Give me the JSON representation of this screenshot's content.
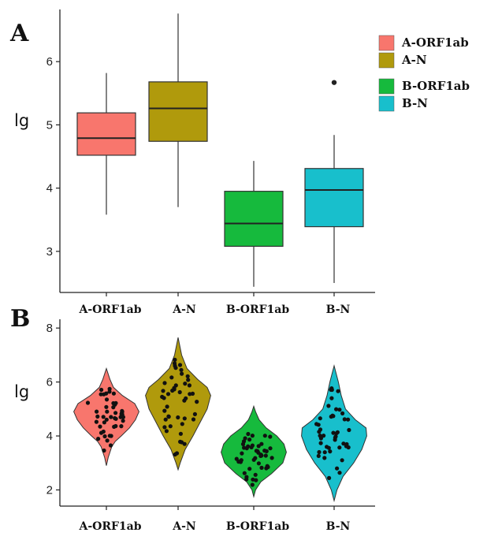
{
  "chart_data": [
    {
      "panel": "A",
      "type": "box",
      "ylabel": "lg",
      "ylim": [
        2.35,
        6.75
      ],
      "yticks": [
        3,
        4,
        5,
        6
      ],
      "categories": [
        "A-ORF1ab",
        "A-N",
        "B-ORF1ab",
        "B-N"
      ],
      "boxes": [
        {
          "name": "A-ORF1ab",
          "whisker_low": 3.58,
          "q1": 4.52,
          "median": 4.79,
          "q3": 5.19,
          "whisker_high": 5.82,
          "outliers": [],
          "color": "#F8766D"
        },
        {
          "name": "A-N",
          "whisker_low": 3.7,
          "q1": 4.74,
          "median": 5.26,
          "q3": 5.68,
          "whisker_high": 6.76,
          "outliers": [],
          "color": "#B09A0C"
        },
        {
          "name": "B-ORF1ab",
          "whisker_low": 2.44,
          "q1": 3.08,
          "median": 3.44,
          "q3": 3.95,
          "whisker_high": 4.43,
          "outliers": [],
          "color": "#16BA3D"
        },
        {
          "name": "B-N",
          "whisker_low": 2.5,
          "q1": 3.39,
          "median": 3.97,
          "q3": 4.31,
          "whisker_high": 4.84,
          "outliers": [
            5.67
          ],
          "color": "#18BFCC"
        }
      ]
    },
    {
      "panel": "B",
      "type": "violin",
      "ylabel": "lg",
      "ylim": [
        1.4,
        8.15
      ],
      "yticks": [
        2,
        4,
        6,
        8
      ],
      "categories": [
        "A-ORF1ab",
        "A-N",
        "B-ORF1ab",
        "B-N"
      ],
      "violins": [
        {
          "name": "A-ORF1ab",
          "min": 2.9,
          "max": 6.5,
          "color": "#F8766D",
          "profile": [
            [
              2.9,
              0
            ],
            [
              3.2,
              0.05
            ],
            [
              3.6,
              0.15
            ],
            [
              3.8,
              0.25
            ],
            [
              4.0,
              0.42
            ],
            [
              4.3,
              0.65
            ],
            [
              4.6,
              0.82
            ],
            [
              4.9,
              0.92
            ],
            [
              5.2,
              0.8
            ],
            [
              5.5,
              0.45
            ],
            [
              5.8,
              0.2
            ],
            [
              6.1,
              0.1
            ],
            [
              6.5,
              0
            ]
          ]
        },
        {
          "name": "A-N",
          "min": 2.75,
          "max": 7.65,
          "color": "#B09A0C",
          "profile": [
            [
              2.75,
              0
            ],
            [
              3.0,
              0.06
            ],
            [
              3.5,
              0.2
            ],
            [
              4.0,
              0.42
            ],
            [
              4.5,
              0.62
            ],
            [
              5.0,
              0.82
            ],
            [
              5.5,
              0.92
            ],
            [
              5.8,
              0.82
            ],
            [
              6.1,
              0.55
            ],
            [
              6.5,
              0.25
            ],
            [
              7.0,
              0.1
            ],
            [
              7.65,
              0
            ]
          ]
        },
        {
          "name": "B-ORF1ab",
          "min": 1.75,
          "max": 5.1,
          "color": "#16BA3D",
          "profile": [
            [
              1.75,
              0
            ],
            [
              2.0,
              0.05
            ],
            [
              2.3,
              0.2
            ],
            [
              2.6,
              0.5
            ],
            [
              3.0,
              0.82
            ],
            [
              3.4,
              0.92
            ],
            [
              3.7,
              0.85
            ],
            [
              4.0,
              0.65
            ],
            [
              4.3,
              0.35
            ],
            [
              4.6,
              0.15
            ],
            [
              4.9,
              0.05
            ],
            [
              5.1,
              0
            ]
          ]
        },
        {
          "name": "B-N",
          "min": 1.6,
          "max": 6.6,
          "color": "#18BFCC",
          "profile": [
            [
              1.6,
              0
            ],
            [
              2.0,
              0.08
            ],
            [
              2.5,
              0.25
            ],
            [
              3.0,
              0.55
            ],
            [
              3.5,
              0.78
            ],
            [
              4.0,
              0.92
            ],
            [
              4.3,
              0.9
            ],
            [
              4.6,
              0.6
            ],
            [
              5.0,
              0.32
            ],
            [
              5.5,
              0.2
            ],
            [
              6.0,
              0.12
            ],
            [
              6.6,
              0
            ]
          ]
        }
      ]
    }
  ],
  "legend": {
    "placement": "right",
    "groups": [
      [
        {
          "label": "A-ORF1ab",
          "color": "#F8766D"
        },
        {
          "label": "A-N",
          "color": "#B09A0C"
        }
      ],
      [
        {
          "label": "B-ORF1ab",
          "color": "#16BA3D"
        },
        {
          "label": "B-N",
          "color": "#18BFCC"
        }
      ]
    ]
  },
  "panel_labels": [
    "A",
    "B"
  ]
}
